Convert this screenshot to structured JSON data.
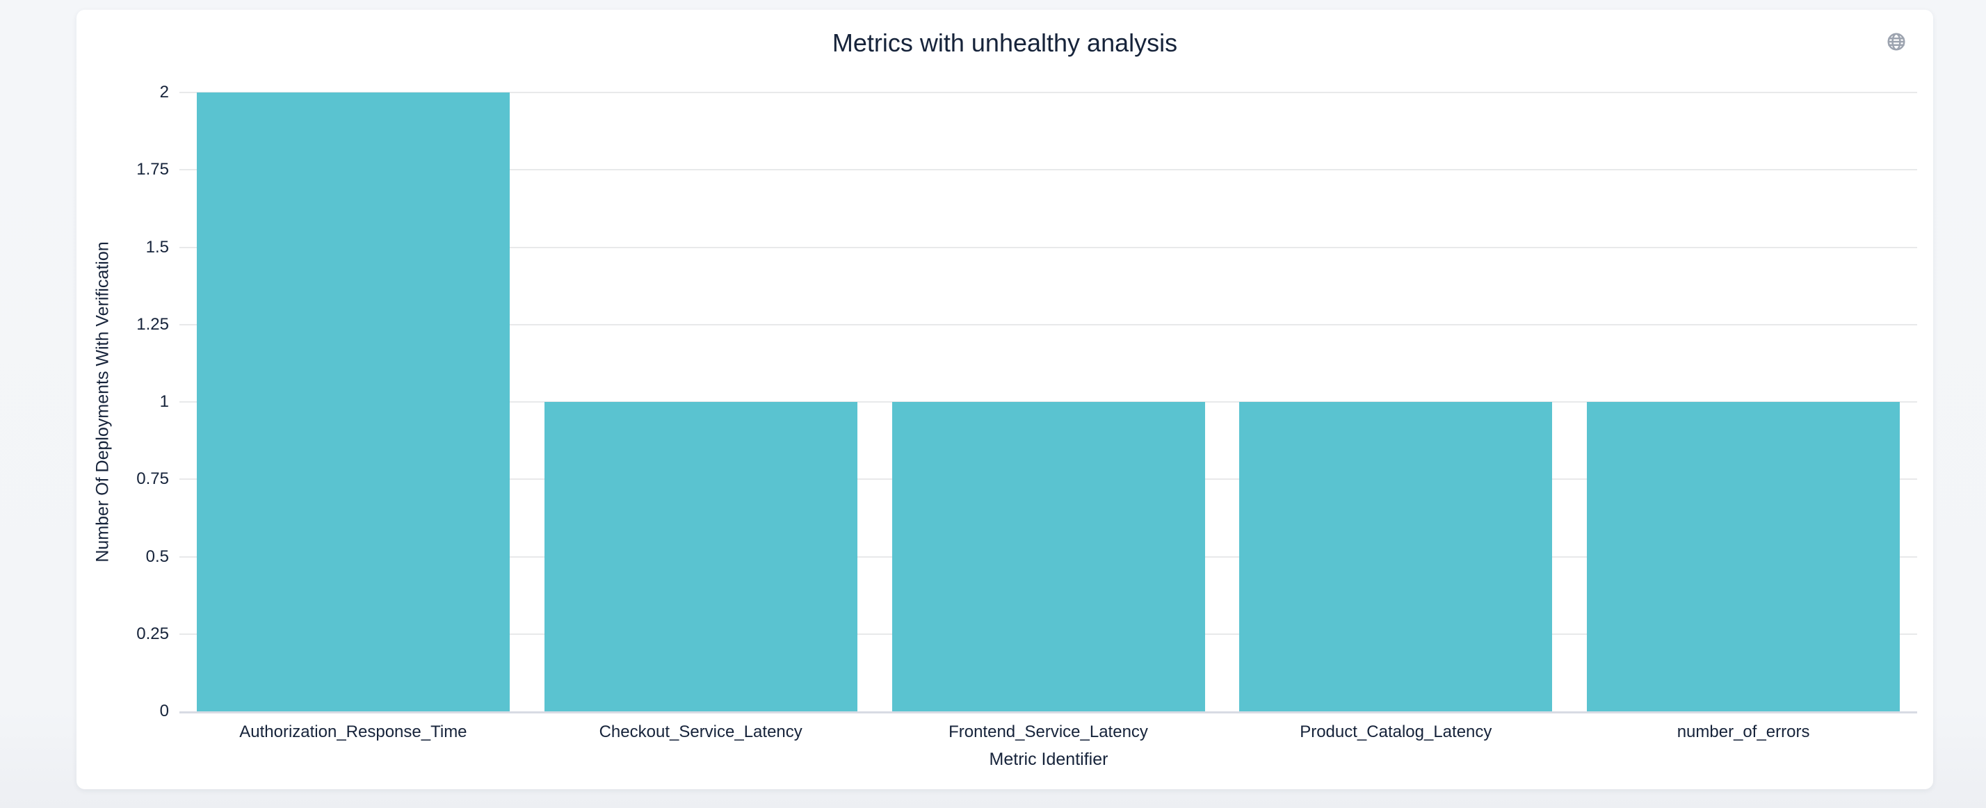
{
  "header": {
    "title": "Metrics with unhealthy analysis",
    "globe_icon": "globe"
  },
  "colors": {
    "page_background": "#F3F5F8",
    "card_background": "#FFFFFF",
    "bar": "#5AC3D0",
    "text": "#16233A",
    "gridline": "#E8E9EA",
    "axis_line": "#D8DBE4",
    "globe_icon": "#9CA3AF"
  },
  "chart_data": {
    "type": "bar",
    "title": "Metrics with unhealthy analysis",
    "categories": [
      "Authorization_Response_Time",
      "Checkout_Service_Latency",
      "Frontend_Service_Latency",
      "Product_Catalog_Latency",
      "number_of_errors"
    ],
    "values": [
      2,
      1,
      1,
      1,
      1
    ],
    "xlabel": "Metric Identifier",
    "ylabel": "Number Of Deployments With Verification",
    "ylim": [
      0,
      2
    ],
    "yticks": [
      0,
      0.25,
      0.5,
      0.75,
      1,
      1.25,
      1.5,
      1.75,
      2
    ],
    "ytick_labels": [
      "0",
      "0.25",
      "0.5",
      "0.75",
      "1",
      "1.25",
      "1.5",
      "1.75",
      "2"
    ],
    "grid": true,
    "legend": false,
    "bar_color": "#5AC3D0"
  }
}
